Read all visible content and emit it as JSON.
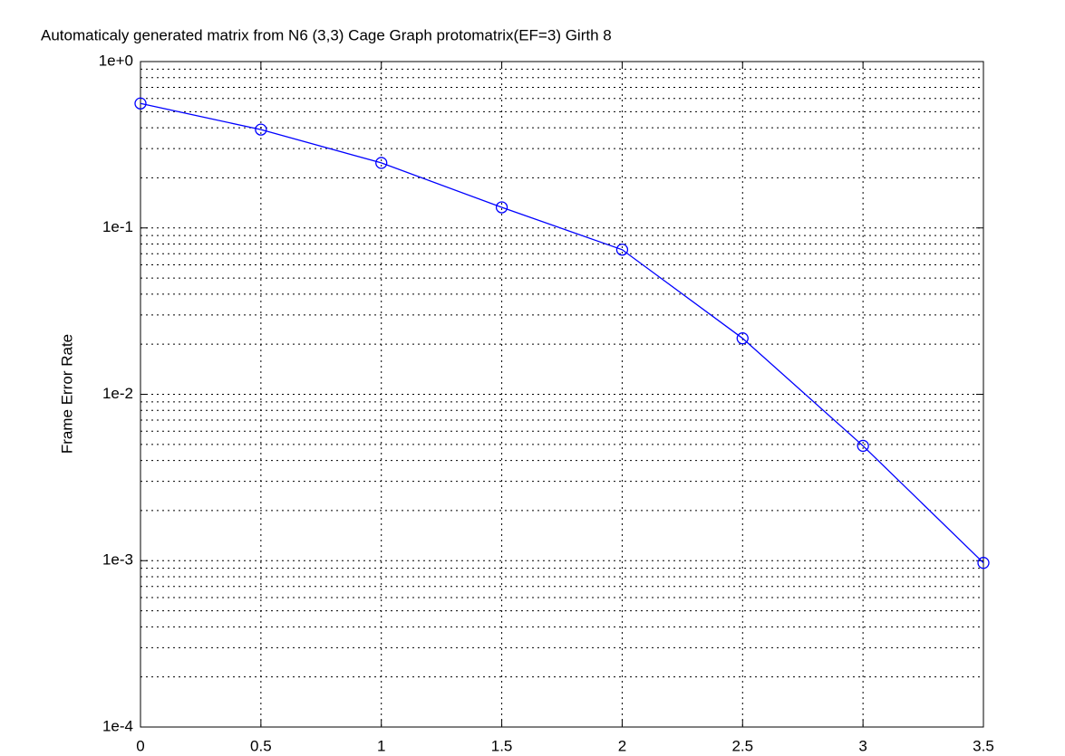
{
  "chart_data": {
    "type": "line",
    "title": "Automaticaly generated matrix from N6 (3,3) Cage Graph protomatrix(EF=3) Girth 8",
    "y_label": "Frame Error Rate",
    "x": [
      0,
      0.5,
      1,
      1.5,
      2,
      2.5,
      3,
      3.5
    ],
    "series": [
      {
        "color": "#0000ff",
        "marker": "circle",
        "values": [
          0.56,
          0.39,
          0.246,
          0.133,
          0.074,
          0.0217,
          0.0049,
          0.00097
        ]
      }
    ],
    "xlim": [
      0,
      3.5
    ],
    "xticks": [
      0,
      0.5,
      1,
      1.5,
      2,
      2.5,
      3,
      3.5
    ],
    "ylim": [
      0.0001,
      1
    ],
    "yticks": [
      {
        "value": 1,
        "label": "1e+0"
      },
      {
        "value": 0.1,
        "label": "1e-1"
      },
      {
        "value": 0.01,
        "label": "1e-2"
      },
      {
        "value": 0.001,
        "label": "1e-3"
      },
      {
        "value": 0.0001,
        "label": "1e-4"
      }
    ],
    "y_log": true,
    "grid": true,
    "minor_grid": true
  }
}
